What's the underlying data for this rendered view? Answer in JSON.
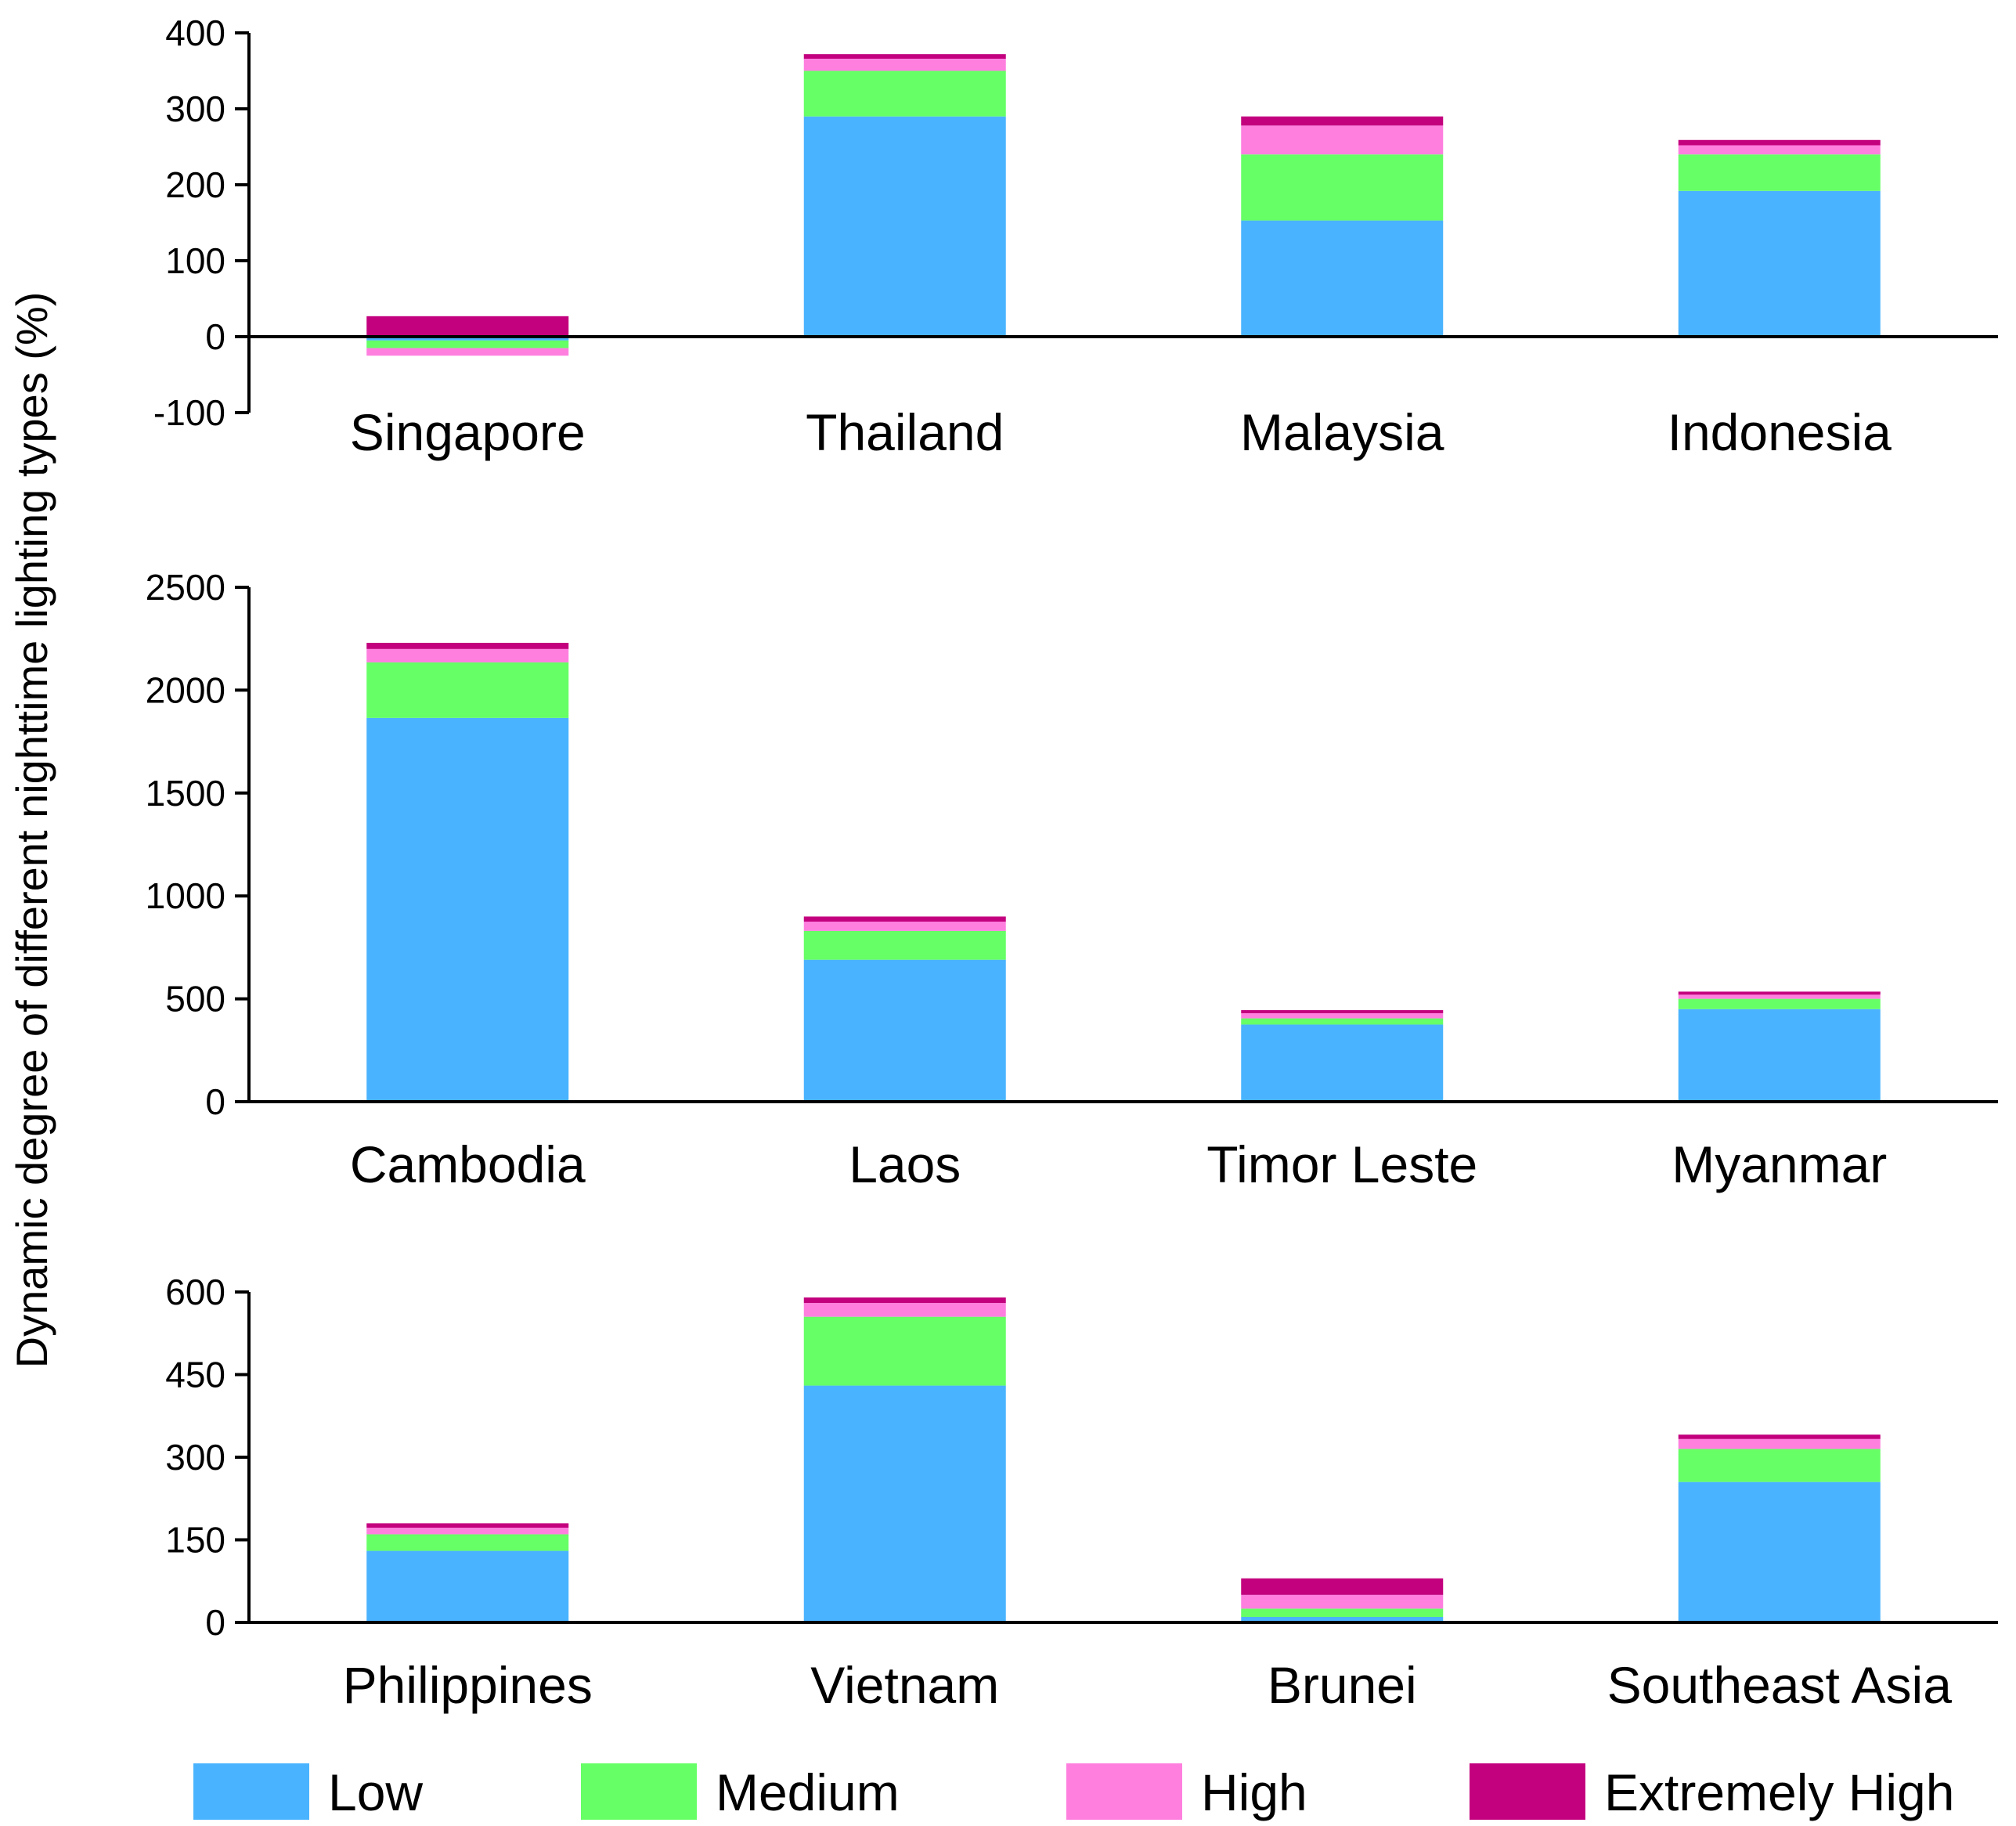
{
  "chart_data": {
    "type": "bar",
    "stacked": true,
    "ylabel": "Dynamic degree of different nighttime lighting types (%)",
    "legend": {
      "placement": "bottom",
      "entries": [
        {
          "key": "low",
          "label": "Low",
          "color": "#4AB3FF"
        },
        {
          "key": "medium",
          "label": "Medium",
          "color": "#66FF66"
        },
        {
          "key": "high",
          "label": "High",
          "color": "#FF7FDF"
        },
        {
          "key": "extremely_high",
          "label": "Extremely High",
          "color": "#C3007E"
        }
      ]
    },
    "panels": [
      {
        "categories": [
          "Singapore",
          "Thailand",
          "Malaysia",
          "Indonesia"
        ],
        "ylim": [
          -100,
          400
        ],
        "yticks": [
          "-100",
          "0",
          "100",
          "200",
          "300",
          "400"
        ],
        "series": [
          {
            "key": "low",
            "name": "Low",
            "values": [
              -5,
              290,
              153,
              192
            ]
          },
          {
            "key": "medium",
            "name": "Medium",
            "values": [
              -10,
              60,
              87,
              48
            ]
          },
          {
            "key": "high",
            "name": "High",
            "values": [
              -10,
              16,
              38,
              12
            ]
          },
          {
            "key": "extremely_high",
            "name": "Extremely High",
            "values": [
              27,
              6,
              12,
              7
            ]
          }
        ]
      },
      {
        "categories": [
          "Cambodia",
          "Laos",
          "Timor Leste",
          "Myanmar"
        ],
        "ylim": [
          0,
          2500
        ],
        "yticks": [
          "0",
          "500",
          "1000",
          "1500",
          "2000",
          "2500"
        ],
        "series": [
          {
            "key": "low",
            "name": "Low",
            "values": [
              1865,
              690,
              375,
              450
            ]
          },
          {
            "key": "medium",
            "name": "Medium",
            "values": [
              270,
              140,
              30,
              50
            ]
          },
          {
            "key": "high",
            "name": "High",
            "values": [
              65,
              45,
              25,
              20
            ]
          },
          {
            "key": "extremely_high",
            "name": "Extremely High",
            "values": [
              30,
              25,
              15,
              15
            ]
          }
        ]
      },
      {
        "categories": [
          "Philippines",
          "Vietnam",
          "Brunei",
          "Southeast Asia"
        ],
        "ylim": [
          0,
          600
        ],
        "yticks": [
          "0",
          "150",
          "300",
          "450",
          "600"
        ],
        "series": [
          {
            "key": "low",
            "name": "Low",
            "values": [
              130,
              430,
              10,
              255
            ]
          },
          {
            "key": "medium",
            "name": "Medium",
            "values": [
              30,
              125,
              15,
              60
            ]
          },
          {
            "key": "high",
            "name": "High",
            "values": [
              12,
              25,
              25,
              18
            ]
          },
          {
            "key": "extremely_high",
            "name": "Extremely High",
            "values": [
              8,
              10,
              30,
              8
            ]
          }
        ]
      }
    ]
  }
}
